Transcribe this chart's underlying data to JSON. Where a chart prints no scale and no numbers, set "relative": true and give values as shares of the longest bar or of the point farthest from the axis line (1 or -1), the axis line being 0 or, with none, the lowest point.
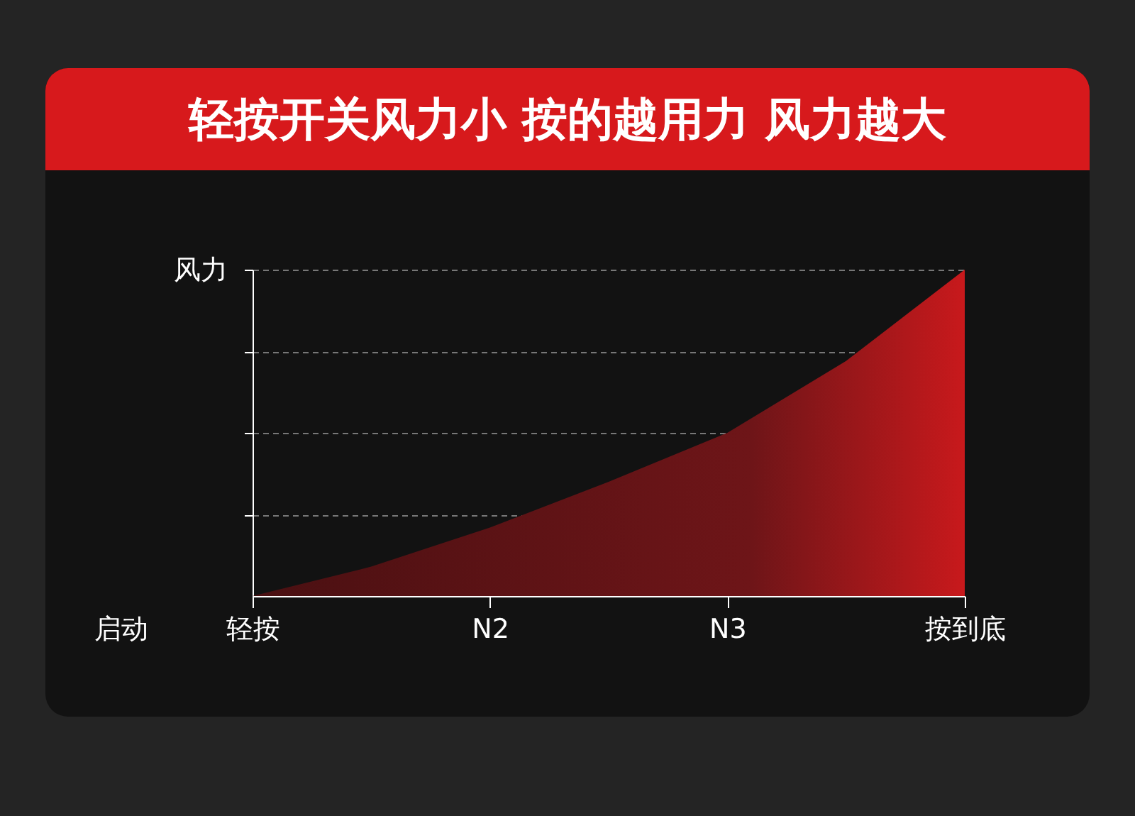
{
  "chart_data": {
    "type": "area",
    "title": "轻按开关风力小 按的越用力 风力越大",
    "ylabel": "风力",
    "xlabel": "启动",
    "categories": [
      "轻按",
      null,
      "N2",
      null,
      "N3",
      null,
      "按到底"
    ],
    "values": [
      0,
      0.09,
      0.21,
      0.35,
      0.5,
      0.72,
      1
    ],
    "color": "#c8191c",
    "relative": true,
    "grid": "y"
  }
}
